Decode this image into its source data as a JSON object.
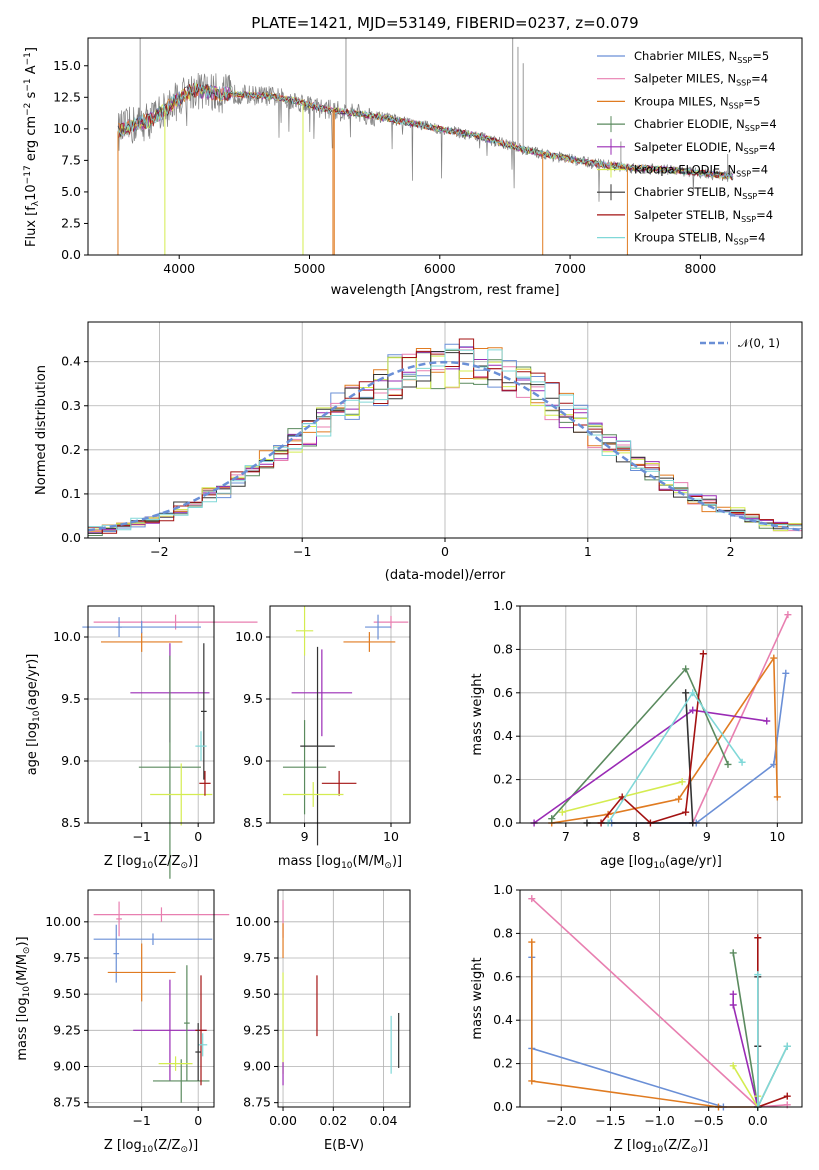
{
  "colors": [
    "#6a8fd6",
    "#e87fb0",
    "#e07b21",
    "#5a8a5e",
    "#9a2bb5",
    "#d4ec50",
    "#333333",
    "#a31212",
    "#80d8d8"
  ],
  "chart_data": [
    {
      "id": "spectrum",
      "type": "line",
      "title": "PLATE=1421, MJD=53149, FIBERID=0237, z=0.079",
      "xlabel": "wavelength [Angstrom, rest frame]",
      "ylabel": "Flux [f",
      "ylabel_sub": "λ",
      "ylabel_rest": "10",
      "ylabel_sup": "−17",
      "ylabel_end": " erg cm",
      "ylabel_sup2": "−2",
      "ylabel_s": " s",
      "ylabel_sup3": "−1",
      "ylabel_a": " A",
      "ylabel_sup4": "−1",
      "ylabel_close": "]",
      "xlim": [
        3300,
        8780
      ],
      "ylim": [
        0,
        17.2
      ],
      "xticks": [
        4000,
        5000,
        6000,
        7000,
        8000
      ],
      "yticks": [
        "0.0",
        "2.5",
        "5.0",
        "7.5",
        "10.0",
        "12.5",
        "15.0"
      ],
      "legend": [
        {
          "name": "Chabrier MILES, N",
          "sub": "SSP",
          "tail": "=5"
        },
        {
          "name": "Salpeter MILES, N",
          "sub": "SSP",
          "tail": "=4"
        },
        {
          "name": "Kroupa MILES, N",
          "sub": "SSP",
          "tail": "=5"
        },
        {
          "name": "Chabrier ELODIE, N",
          "sub": "SSP",
          "tail": "=4"
        },
        {
          "name": "Salpeter ELODIE, N",
          "sub": "SSP",
          "tail": "=4"
        },
        {
          "name": "Kroupa ELODIE, N",
          "sub": "SSP",
          "tail": "=4"
        },
        {
          "name": "Chabrier STELIB, N",
          "sub": "SSP",
          "tail": "=4"
        },
        {
          "name": "Salpeter STELIB, N",
          "sub": "SSP",
          "tail": "=4"
        },
        {
          "name": "Kroupa STELIB, N",
          "sub": "SSP",
          "tail": "=4"
        }
      ],
      "continuum": [
        [
          3530,
          9.8
        ],
        [
          3650,
          10.3
        ],
        [
          3800,
          10.8
        ],
        [
          3950,
          12.0
        ],
        [
          4100,
          13.1
        ],
        [
          4300,
          12.8
        ],
        [
          4500,
          12.7
        ],
        [
          4700,
          12.6
        ],
        [
          4900,
          12.2
        ],
        [
          5100,
          11.6
        ],
        [
          5300,
          11.3
        ],
        [
          5500,
          11.0
        ],
        [
          5700,
          10.6
        ],
        [
          5900,
          10.2
        ],
        [
          6100,
          9.8
        ],
        [
          6300,
          9.4
        ],
        [
          6500,
          8.8
        ],
        [
          6700,
          8.2
        ],
        [
          6900,
          7.8
        ],
        [
          7100,
          7.4
        ],
        [
          7300,
          7.1
        ],
        [
          7500,
          6.9
        ],
        [
          7700,
          6.8
        ],
        [
          7900,
          6.6
        ],
        [
          8100,
          6.4
        ],
        [
          8250,
          6.2
        ]
      ]
    },
    {
      "id": "residuals",
      "type": "line",
      "xlabel": "(data-model)/error",
      "ylabel": "Normed distribution",
      "xlim": [
        -2.5,
        2.5
      ],
      "ylim": [
        0,
        0.49
      ],
      "xticks": [
        "−2",
        "−1",
        "0",
        "1",
        "2"
      ],
      "yticks": [
        "0.0",
        "0.1",
        "0.2",
        "0.3",
        "0.4"
      ],
      "xtick_values": [
        -2,
        -1,
        0,
        1,
        2
      ],
      "ytick_values": [
        0,
        0.1,
        0.2,
        0.3,
        0.4
      ],
      "legend": "𝒩(0, 1)",
      "gauss": {
        "mean": 0.0,
        "sigma": 1.0
      }
    },
    {
      "id": "age-vs-z",
      "type": "scatter",
      "xlabel": "Z [log",
      "xlabel_sub": "10",
      "xlabel_tail": "(Z/Z",
      "xlabel_sub2": "⊙",
      "xlabel_end": ")]",
      "ylabel": "age  [log",
      "ylabel_sub": "10",
      "ylabel_tail": "(age/yr)]",
      "xlim": [
        -1.95,
        0.28
      ],
      "ylim": [
        8.5,
        10.25
      ],
      "xticks": [
        "−1",
        "0"
      ],
      "xtick_values": [
        -1,
        0
      ],
      "yticks": [
        "8.5",
        "9.0",
        "9.5",
        "10.0"
      ],
      "ytick_values": [
        8.5,
        9.0,
        9.5,
        10.0
      ],
      "points": [
        {
          "x": -0.4,
          "y": 10.12,
          "xerr": 1.45,
          "yerr": 0.06,
          "c": 1
        },
        {
          "x": -1.4,
          "y": 10.08,
          "xerr": 0.05,
          "yerr": 0.08,
          "c": 0
        },
        {
          "x": -1.0,
          "y": 9.96,
          "xerr": 0.72,
          "yerr": 0.08,
          "c": 2
        },
        {
          "x": -1.0,
          "y": 10.08,
          "xerr": 1.05,
          "yerr": 0.05,
          "c": 0
        },
        {
          "x": -0.5,
          "y": 9.55,
          "xerr": 0.7,
          "yerr": 0.4,
          "c": 4
        },
        {
          "x": -0.5,
          "y": 8.95,
          "xerr": 0.55,
          "yerr": 0.9,
          "c": 3
        },
        {
          "x": -0.3,
          "y": 8.73,
          "xerr": 0.55,
          "yerr": 0.25,
          "c": 5
        },
        {
          "x": 0.1,
          "y": 9.4,
          "xerr": 0.05,
          "yerr": 0.55,
          "c": 6
        },
        {
          "x": 0.12,
          "y": 8.82,
          "xerr": 0.1,
          "yerr": 0.1,
          "c": 7
        },
        {
          "x": 0.05,
          "y": 9.12,
          "xerr": 0.1,
          "yerr": 0.12,
          "c": 8
        }
      ]
    },
    {
      "id": "age-vs-mass",
      "type": "scatter",
      "xlabel": "mass [log",
      "xlabel_sub": "10",
      "xlabel_tail": "(M/M",
      "xlabel_sub2": "⊙",
      "xlabel_end": ")]",
      "xlim": [
        8.6,
        10.22
      ],
      "ylim": [
        8.5,
        10.25
      ],
      "xticks": [
        "9",
        "10"
      ],
      "xtick_values": [
        9,
        10
      ],
      "yticks": [
        "8.5",
        "9.0",
        "9.5",
        "10.0"
      ],
      "ytick_values": [
        8.5,
        9.0,
        9.5,
        10.0
      ],
      "points": [
        {
          "x": 9.0,
          "y": 10.05,
          "xerr": 0.1,
          "yerr": 0.2,
          "c": 5
        },
        {
          "x": 10.0,
          "y": 10.12,
          "xerr": 0.2,
          "yerr": 0.05,
          "c": 1
        },
        {
          "x": 9.85,
          "y": 10.08,
          "xerr": 0.15,
          "yerr": 0.1,
          "c": 0
        },
        {
          "x": 9.75,
          "y": 9.96,
          "xerr": 0.3,
          "yerr": 0.08,
          "c": 2
        },
        {
          "x": 9.2,
          "y": 9.55,
          "xerr": 0.35,
          "yerr": 0.35,
          "c": 4
        },
        {
          "x": 9.0,
          "y": 8.95,
          "xerr": 0.25,
          "yerr": 0.38,
          "c": 3
        },
        {
          "x": 9.15,
          "y": 9.12,
          "xerr": 0.2,
          "yerr": 0.8,
          "c": 6
        },
        {
          "x": 9.4,
          "y": 8.82,
          "xerr": 0.2,
          "yerr": 0.1,
          "c": 7
        },
        {
          "x": 9.1,
          "y": 8.73,
          "xerr": 0.35,
          "yerr": 0.1,
          "c": 5
        }
      ]
    },
    {
      "id": "mass-weight-vs-age",
      "type": "line",
      "xlabel": "age  [log",
      "xlabel_sub": "10",
      "xlabel_tail": "(age/yr)]",
      "ylabel": "mass weight",
      "xlim": [
        6.35,
        10.35
      ],
      "ylim": [
        0,
        1.0
      ],
      "xticks": [
        "7",
        "8",
        "9",
        "10"
      ],
      "xtick_values": [
        7,
        8,
        9,
        10
      ],
      "yticks": [
        "0.0",
        "0.2",
        "0.4",
        "0.6",
        "0.8",
        "1.0"
      ],
      "ytick_values": [
        0,
        0.2,
        0.4,
        0.6,
        0.8,
        1.0
      ],
      "series": [
        {
          "c": 0,
          "pts": [
            [
              7.65,
              0.0
            ],
            [
              8.85,
              0.0
            ],
            [
              9.95,
              0.27
            ],
            [
              10.12,
              0.69
            ]
          ]
        },
        {
          "c": 1,
          "pts": [
            [
              8.8,
              0.0
            ],
            [
              10.15,
              0.96
            ]
          ]
        },
        {
          "c": 2,
          "pts": [
            [
              6.8,
              0.0
            ],
            [
              7.6,
              0.04
            ],
            [
              8.6,
              0.11
            ],
            [
              9.95,
              0.76
            ],
            [
              10.0,
              0.12
            ]
          ]
        },
        {
          "c": 3,
          "pts": [
            [
              6.8,
              0.02
            ],
            [
              8.7,
              0.71
            ],
            [
              9.3,
              0.27
            ]
          ]
        },
        {
          "c": 4,
          "pts": [
            [
              6.55,
              0.0
            ],
            [
              8.8,
              0.52
            ],
            [
              9.85,
              0.47
            ]
          ]
        },
        {
          "c": 5,
          "pts": [
            [
              6.95,
              0.05
            ],
            [
              8.65,
              0.19
            ]
          ]
        },
        {
          "c": 6,
          "pts": [
            [
              7.3,
              0.0
            ],
            [
              8.8,
              0.0
            ],
            [
              8.7,
              0.6
            ]
          ]
        },
        {
          "c": 7,
          "pts": [
            [
              7.5,
              0.0
            ],
            [
              7.8,
              0.12
            ],
            [
              8.2,
              0.0
            ],
            [
              8.7,
              0.05
            ],
            [
              8.95,
              0.78
            ]
          ]
        },
        {
          "c": 8,
          "pts": [
            [
              7.6,
              0.0
            ],
            [
              8.8,
              0.6
            ],
            [
              9.5,
              0.28
            ]
          ]
        }
      ]
    },
    {
      "id": "mass-vs-z",
      "type": "scatter",
      "xlabel": "Z [log",
      "xlabel_sub": "10",
      "xlabel_tail": "(Z/Z",
      "xlabel_sub2": "⊙",
      "xlabel_end": ")]",
      "ylabel": "mass [log",
      "ylabel_sub": "10",
      "ylabel_tail": "(M/M",
      "ylabel_sub2": "⊙",
      "ylabel_end": ")]",
      "xlim": [
        -1.95,
        0.28
      ],
      "ylim": [
        8.72,
        10.22
      ],
      "xticks": [
        "−1",
        "0"
      ],
      "xtick_values": [
        -1,
        0
      ],
      "yticks": [
        "8.75",
        "9.00",
        "9.25",
        "9.50",
        "9.75",
        "10.00"
      ],
      "ytick_values": [
        8.75,
        9.0,
        9.25,
        9.5,
        9.75,
        10.0
      ],
      "points": [
        {
          "x": -0.65,
          "y": 10.05,
          "xerr": 1.2,
          "yerr": 0.05,
          "c": 1
        },
        {
          "x": -1.4,
          "y": 10.02,
          "xerr": 0.05,
          "yerr": 0.12,
          "c": 1
        },
        {
          "x": -0.8,
          "y": 9.88,
          "xerr": 1.05,
          "yerr": 0.04,
          "c": 0
        },
        {
          "x": -1.45,
          "y": 9.78,
          "xerr": 0.05,
          "yerr": 0.2,
          "c": 0
        },
        {
          "x": -1.0,
          "y": 9.65,
          "xerr": 0.6,
          "yerr": 0.2,
          "c": 2
        },
        {
          "x": -0.5,
          "y": 9.25,
          "xerr": 0.65,
          "yerr": 0.35,
          "c": 4
        },
        {
          "x": -0.3,
          "y": 8.9,
          "xerr": 0.5,
          "yerr": 0.15,
          "c": 3
        },
        {
          "x": -0.2,
          "y": 9.3,
          "xerr": 0.05,
          "yerr": 0.4,
          "c": 3
        },
        {
          "x": -0.4,
          "y": 9.02,
          "xerr": 0.3,
          "yerr": 0.05,
          "c": 5
        },
        {
          "x": 0.05,
          "y": 9.25,
          "xerr": 0.1,
          "yerr": 0.38,
          "c": 7
        },
        {
          "x": 0.08,
          "y": 9.15,
          "xerr": 0.08,
          "yerr": 0.08,
          "c": 8
        },
        {
          "x": 0.0,
          "y": 9.1,
          "xerr": 0.05,
          "yerr": 0.2,
          "c": 6
        }
      ]
    },
    {
      "id": "mass-vs-ebv",
      "type": "scatter",
      "xlabel": "E(B-V)",
      "xlim": [
        -0.002,
        0.0505
      ],
      "ylim": [
        8.72,
        10.22
      ],
      "xticks": [
        "0.00",
        "0.02",
        "0.04"
      ],
      "xtick_values": [
        0,
        0.02,
        0.04
      ],
      "yticks": [
        "8.75",
        "9.00",
        "9.25",
        "9.50",
        "9.75",
        "10.00"
      ],
      "ytick_values": [
        8.75,
        9.0,
        9.25,
        9.5,
        9.75,
        10.0
      ],
      "points": [
        {
          "x": 0.0,
          "y": 10.02,
          "xerr": 0,
          "yerr": 0.13,
          "c": 1
        },
        {
          "x": 0.0,
          "y": 9.87,
          "xerr": 0,
          "yerr": 0.12,
          "c": 2
        },
        {
          "x": 0.0,
          "y": 9.3,
          "xerr": 0,
          "yerr": 0.35,
          "c": 5
        },
        {
          "x": 0.0,
          "y": 8.95,
          "xerr": 0,
          "yerr": 0.08,
          "c": 4
        },
        {
          "x": 0.0135,
          "y": 9.42,
          "xerr": 0,
          "yerr": 0.21,
          "c": 7
        },
        {
          "x": 0.043,
          "y": 9.15,
          "xerr": 0,
          "yerr": 0.2,
          "c": 8
        },
        {
          "x": 0.046,
          "y": 9.18,
          "xerr": 0,
          "yerr": 0.19,
          "c": 6
        }
      ]
    },
    {
      "id": "mass-weight-vs-z",
      "type": "line",
      "xlabel": "Z [log",
      "xlabel_sub": "10",
      "xlabel_tail": "(Z/Z",
      "xlabel_sub2": "⊙",
      "xlabel_end": ")]",
      "ylabel": "mass weight",
      "xlim": [
        -2.42,
        0.45
      ],
      "ylim": [
        0,
        1.0
      ],
      "xticks": [
        "−2.0",
        "−1.5",
        "−1.0",
        "−0.5",
        "0.0"
      ],
      "xtick_values": [
        -2.0,
        -1.5,
        -1.0,
        -0.5,
        0.0
      ],
      "yticks": [
        "0.0",
        "0.2",
        "0.4",
        "0.6",
        "0.8",
        "1.0"
      ],
      "ytick_values": [
        0,
        0.2,
        0.4,
        0.6,
        0.8,
        1.0
      ],
      "series": [
        {
          "c": 0,
          "pts": [
            [
              -2.3,
              0.69
            ],
            [
              -2.3,
              0.27
            ],
            [
              -0.35,
              0.0
            ],
            [
              0.0,
              0.0
            ]
          ]
        },
        {
          "c": 1,
          "pts": [
            [
              -2.3,
              0.96
            ],
            [
              0.0,
              0.0
            ],
            [
              0.3,
              0.01
            ]
          ]
        },
        {
          "c": 2,
          "pts": [
            [
              -2.3,
              0.76
            ],
            [
              -2.3,
              0.12
            ],
            [
              -0.4,
              0.0
            ],
            [
              0.0,
              0.0
            ]
          ]
        },
        {
          "c": 3,
          "pts": [
            [
              -0.25,
              0.71
            ],
            [
              0.0,
              0.0
            ],
            [
              0.3,
              0.28
            ]
          ]
        },
        {
          "c": 4,
          "pts": [
            [
              -0.25,
              0.52
            ],
            [
              -0.25,
              0.47
            ],
            [
              0.0,
              0.0
            ]
          ]
        },
        {
          "c": 5,
          "pts": [
            [
              -0.25,
              0.19
            ],
            [
              0.0,
              0.0
            ],
            [
              0.0,
              0.05
            ]
          ]
        },
        {
          "c": 6,
          "pts": [
            [
              0.0,
              0.6
            ],
            [
              0.0,
              0.0
            ],
            [
              0.0,
              0.28
            ]
          ]
        },
        {
          "c": 7,
          "pts": [
            [
              0.0,
              0.78
            ],
            [
              0.0,
              0.0
            ],
            [
              0.3,
              0.05
            ]
          ]
        },
        {
          "c": 8,
          "pts": [
            [
              0.0,
              0.61
            ],
            [
              0.0,
              0.0
            ],
            [
              0.3,
              0.28
            ]
          ]
        }
      ]
    }
  ]
}
